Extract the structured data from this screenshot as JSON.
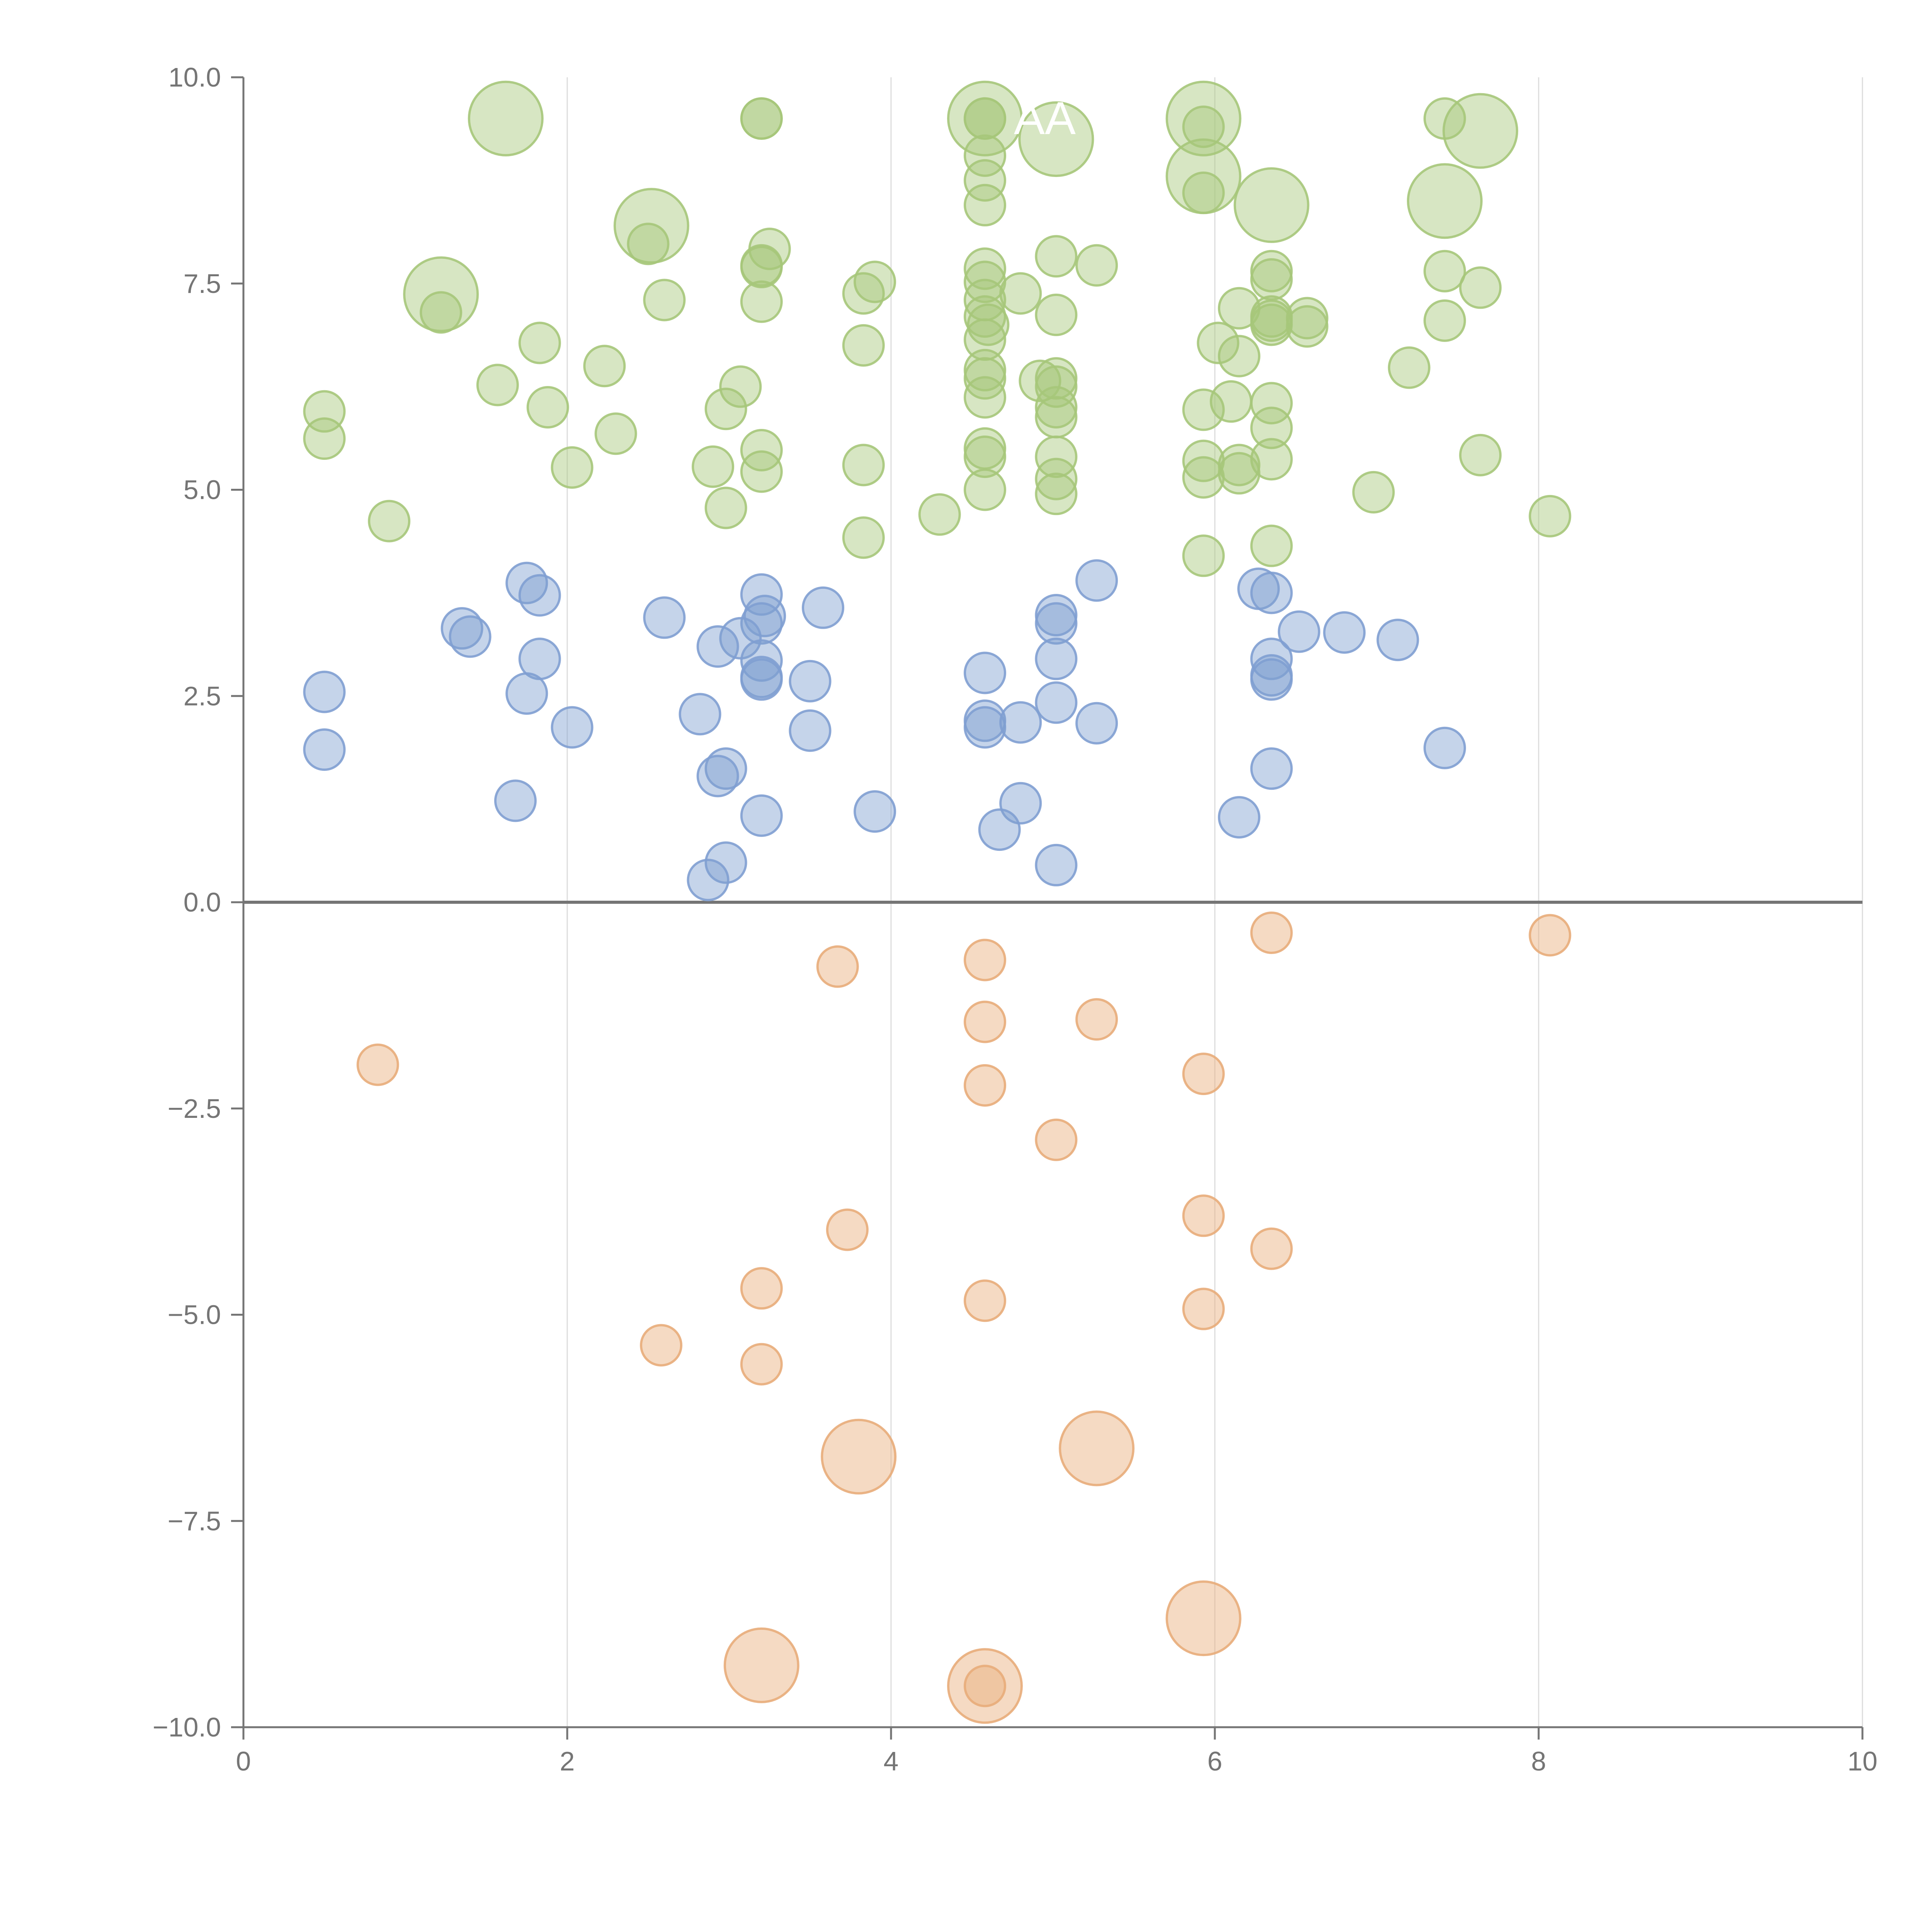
{
  "chart_data": {
    "type": "scatter",
    "title": "",
    "xlabel": "",
    "ylabel": "",
    "xlim": [
      0,
      10
    ],
    "ylim": [
      -10,
      10
    ],
    "x_ticks": [
      0,
      2,
      4,
      6,
      8,
      10
    ],
    "x_tick_labels": [
      "0",
      "2",
      "4",
      "6",
      "8",
      "10"
    ],
    "y_ticks": [
      10,
      7.5,
      5,
      2.5,
      0,
      -2.5,
      -5,
      -7.5,
      -10
    ],
    "y_tick_labels": [
      "10.0",
      "7.5",
      "5.0",
      "2.5",
      "0.0",
      "−2.5",
      "−5.0",
      "−7.5",
      "−10.0"
    ],
    "grid": "vertical lines at x ticks",
    "legend": "none",
    "marker_opacity": 0.45,
    "series": [
      {
        "color": "#a6c77a",
        "points": [
          [
            1.62,
            9.5,
            2
          ],
          [
            3.2,
            9.5,
            1
          ],
          [
            3.2,
            9.5,
            1
          ],
          [
            4.58,
            9.5,
            2
          ],
          [
            4.58,
            9.5,
            1
          ],
          [
            4.58,
            9.5,
            1
          ],
          [
            5.02,
            9.25,
            2
          ],
          [
            5.93,
            9.5,
            2
          ],
          [
            5.93,
            9.4,
            1
          ],
          [
            7.42,
            9.5,
            1
          ],
          [
            7.64,
            9.35,
            2
          ],
          [
            4.58,
            9.05,
            1
          ],
          [
            4.58,
            8.75,
            1
          ],
          [
            5.93,
            8.8,
            2
          ],
          [
            5.93,
            8.6,
            1
          ],
          [
            6.35,
            8.45,
            2
          ],
          [
            4.58,
            8.45,
            1
          ],
          [
            7.42,
            8.5,
            2
          ],
          [
            2.52,
            8.2,
            2
          ],
          [
            2.5,
            7.98,
            1
          ],
          [
            3.25,
            7.92,
            1
          ],
          [
            3.2,
            7.72,
            1
          ],
          [
            3.2,
            7.7,
            1
          ],
          [
            4.58,
            7.68,
            1
          ],
          [
            5.02,
            7.83,
            1
          ],
          [
            5.27,
            7.72,
            1
          ],
          [
            6.35,
            7.65,
            1
          ],
          [
            6.35,
            7.55,
            1
          ],
          [
            7.42,
            7.65,
            1
          ],
          [
            1.22,
            7.37,
            2
          ],
          [
            1.22,
            7.15,
            1
          ],
          [
            2.6,
            7.3,
            1
          ],
          [
            3.2,
            7.28,
            1
          ],
          [
            3.83,
            7.38,
            1
          ],
          [
            3.9,
            7.52,
            1
          ],
          [
            4.58,
            7.52,
            1
          ],
          [
            4.58,
            7.3,
            1
          ],
          [
            4.8,
            7.38,
            1
          ],
          [
            7.64,
            7.45,
            1
          ],
          [
            4.58,
            7.1,
            1
          ],
          [
            5.02,
            7.12,
            1
          ],
          [
            6.15,
            7.2,
            1
          ],
          [
            6.35,
            7.1,
            1
          ],
          [
            6.35,
            7.0,
            1
          ],
          [
            6.35,
            7.05,
            1
          ],
          [
            6.57,
            7.08,
            1
          ],
          [
            6.57,
            6.98,
            1
          ],
          [
            7.42,
            7.05,
            1
          ],
          [
            4.6,
            7.0,
            1
          ],
          [
            4.58,
            6.82,
            1
          ],
          [
            1.83,
            6.78,
            1
          ],
          [
            3.83,
            6.75,
            1
          ],
          [
            6.02,
            6.78,
            1
          ],
          [
            6.15,
            6.62,
            1
          ],
          [
            2.23,
            6.5,
            1
          ],
          [
            7.2,
            6.48,
            1
          ],
          [
            4.58,
            6.45,
            1
          ],
          [
            4.58,
            6.35,
            1
          ],
          [
            4.58,
            6.12,
            1
          ],
          [
            4.92,
            6.32,
            1
          ],
          [
            5.02,
            6.35,
            1
          ],
          [
            5.02,
            6.25,
            1
          ],
          [
            1.57,
            6.27,
            1
          ],
          [
            3.07,
            6.25,
            1
          ],
          [
            0.5,
            5.95,
            1
          ],
          [
            1.88,
            6.0,
            1
          ],
          [
            2.98,
            5.98,
            1
          ],
          [
            5.02,
            6.0,
            1
          ],
          [
            5.02,
            5.88,
            1
          ],
          [
            5.93,
            5.97,
            1
          ],
          [
            6.1,
            6.07,
            1
          ],
          [
            6.35,
            6.05,
            1
          ],
          [
            0.5,
            5.62,
            1
          ],
          [
            2.3,
            5.68,
            1
          ],
          [
            6.35,
            5.75,
            1
          ],
          [
            3.2,
            5.48,
            1
          ],
          [
            4.58,
            5.5,
            1
          ],
          [
            4.58,
            5.4,
            1
          ],
          [
            5.02,
            5.4,
            1
          ],
          [
            5.93,
            5.35,
            1
          ],
          [
            6.15,
            5.3,
            1
          ],
          [
            6.35,
            5.37,
            1
          ],
          [
            7.64,
            5.42,
            1
          ],
          [
            2.03,
            5.27,
            1
          ],
          [
            2.9,
            5.28,
            1
          ],
          [
            3.2,
            5.22,
            1
          ],
          [
            3.83,
            5.3,
            1
          ],
          [
            5.02,
            5.13,
            1
          ],
          [
            5.93,
            5.15,
            1
          ],
          [
            6.15,
            5.2,
            1
          ],
          [
            4.58,
            5.0,
            1
          ],
          [
            5.02,
            4.95,
            1
          ],
          [
            6.98,
            4.97,
            1
          ],
          [
            2.98,
            4.78,
            1
          ],
          [
            0.9,
            4.62,
            1
          ],
          [
            4.3,
            4.7,
            1
          ],
          [
            8.07,
            4.68,
            1
          ],
          [
            3.83,
            4.42,
            1
          ],
          [
            6.35,
            4.32,
            1
          ],
          [
            5.93,
            4.2,
            1
          ]
        ]
      },
      {
        "color": "#7f9fd1",
        "points": [
          [
            1.75,
            3.87,
            1
          ],
          [
            1.83,
            3.72,
            1
          ],
          [
            3.2,
            3.73,
            1
          ],
          [
            5.27,
            3.9,
            1
          ],
          [
            6.27,
            3.8,
            1
          ],
          [
            6.35,
            3.75,
            1
          ],
          [
            3.58,
            3.57,
            1
          ],
          [
            5.02,
            3.48,
            1
          ],
          [
            5.02,
            3.38,
            1
          ],
          [
            2.6,
            3.45,
            1
          ],
          [
            3.22,
            3.47,
            1
          ],
          [
            3.2,
            3.38,
            1
          ],
          [
            1.35,
            3.32,
            1
          ],
          [
            1.4,
            3.22,
            1
          ],
          [
            6.52,
            3.28,
            1
          ],
          [
            6.8,
            3.27,
            1
          ],
          [
            7.13,
            3.18,
            1
          ],
          [
            3.07,
            3.2,
            1
          ],
          [
            2.93,
            3.1,
            1
          ],
          [
            1.83,
            2.95,
            1
          ],
          [
            3.2,
            2.93,
            1
          ],
          [
            5.02,
            2.95,
            1
          ],
          [
            6.35,
            2.95,
            1
          ],
          [
            4.58,
            2.78,
            1
          ],
          [
            3.2,
            2.73,
            1
          ],
          [
            3.2,
            2.7,
            1
          ],
          [
            3.5,
            2.68,
            1
          ],
          [
            6.35,
            2.75,
            1
          ],
          [
            6.35,
            2.7,
            1
          ],
          [
            0.5,
            2.55,
            1
          ],
          [
            1.75,
            2.53,
            1
          ],
          [
            5.02,
            2.42,
            1
          ],
          [
            2.82,
            2.28,
            1
          ],
          [
            4.58,
            2.2,
            1
          ],
          [
            4.58,
            2.12,
            1
          ],
          [
            4.8,
            2.18,
            1
          ],
          [
            5.27,
            2.17,
            1
          ],
          [
            2.03,
            2.12,
            1
          ],
          [
            3.5,
            2.08,
            1
          ],
          [
            0.5,
            1.85,
            1
          ],
          [
            7.42,
            1.87,
            1
          ],
          [
            2.98,
            1.62,
            1
          ],
          [
            2.93,
            1.53,
            1
          ],
          [
            6.35,
            1.62,
            1
          ],
          [
            1.68,
            1.23,
            1
          ],
          [
            4.8,
            1.2,
            1
          ],
          [
            3.2,
            1.05,
            1
          ],
          [
            3.9,
            1.1,
            1
          ],
          [
            6.15,
            1.03,
            1
          ],
          [
            4.67,
            0.88,
            1
          ],
          [
            2.98,
            0.48,
            1
          ],
          [
            5.02,
            0.45,
            1
          ],
          [
            2.87,
            0.27,
            1
          ]
        ]
      },
      {
        "color": "#e8ac7a",
        "points": [
          [
            6.35,
            -0.37,
            1
          ],
          [
            8.07,
            -0.4,
            1
          ],
          [
            4.58,
            -0.7,
            1
          ],
          [
            3.67,
            -0.78,
            1
          ],
          [
            4.58,
            -1.45,
            1
          ],
          [
            5.27,
            -1.42,
            1
          ],
          [
            0.83,
            -1.97,
            1
          ],
          [
            5.93,
            -2.08,
            1
          ],
          [
            4.58,
            -2.22,
            1
          ],
          [
            5.02,
            -2.88,
            1
          ],
          [
            5.93,
            -3.8,
            1
          ],
          [
            3.73,
            -3.97,
            1
          ],
          [
            6.35,
            -4.2,
            1
          ],
          [
            3.2,
            -4.68,
            1
          ],
          [
            4.58,
            -4.83,
            1
          ],
          [
            5.93,
            -4.93,
            1
          ],
          [
            2.58,
            -5.37,
            1
          ],
          [
            3.2,
            -5.6,
            1
          ],
          [
            5.27,
            -6.62,
            2
          ],
          [
            3.8,
            -6.72,
            2
          ],
          [
            5.93,
            -8.68,
            2
          ],
          [
            3.2,
            -9.25,
            2
          ],
          [
            4.58,
            -9.5,
            2
          ],
          [
            4.58,
            -9.5,
            1
          ]
        ]
      }
    ],
    "annotations": [
      {
        "text": "AA",
        "x": 4.95,
        "y": 9.5,
        "color": "#ffffff"
      }
    ]
  }
}
